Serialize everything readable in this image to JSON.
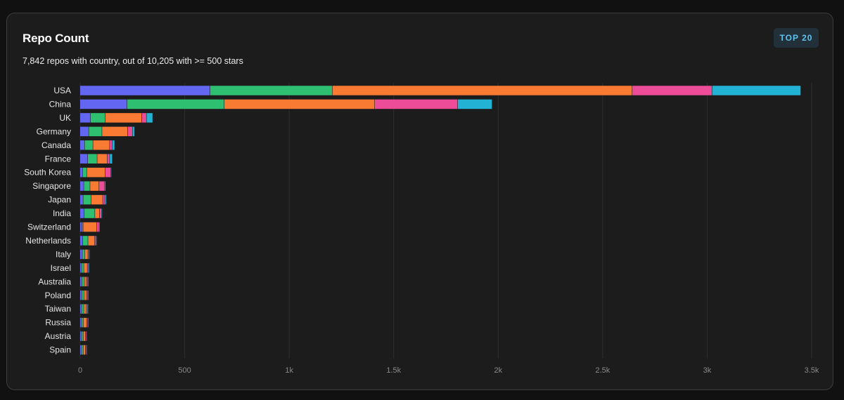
{
  "header": {
    "title": "Repo Count",
    "subtitle": "7,842 repos with country, out of 10,205 with >= 500 stars",
    "badge_label": "TOP 20"
  },
  "colors": {
    "background": "#111111",
    "card": "#1c1c1c",
    "badge_text": "#5fc2ee",
    "segments": [
      "#6366f1",
      "#2fbf71",
      "#f97a32",
      "#ec4c98",
      "#22b2d3"
    ]
  },
  "chart_data": {
    "type": "bar",
    "orientation": "horizontal",
    "stacked": true,
    "title": "",
    "xlabel": "",
    "ylabel": "",
    "xlim": [
      0,
      3500
    ],
    "x_ticks": [
      0,
      500,
      1000,
      1500,
      2000,
      2500,
      3000,
      3500
    ],
    "x_tick_labels": [
      "0",
      "500",
      "1k",
      "1.5k",
      "2k",
      "2.5k",
      "3k",
      "3.5k"
    ],
    "grid": true,
    "legend": "none",
    "categories": [
      "USA",
      "China",
      "UK",
      "Germany",
      "Canada",
      "France",
      "South Korea",
      "Singapore",
      "Japan",
      "India",
      "Switzerland",
      "Netherlands",
      "Italy",
      "Israel",
      "Australia",
      "Poland",
      "Taiwan",
      "Russia",
      "Austria",
      "Spain"
    ],
    "series": [
      {
        "values": [
          622,
          225,
          50,
          42,
          22,
          37,
          12,
          18,
          15,
          19,
          10,
          13,
          11,
          8,
          9,
          9,
          8,
          8,
          8,
          8
        ]
      },
      {
        "values": [
          585,
          465,
          70,
          63,
          40,
          45,
          20,
          30,
          38,
          52,
          5,
          25,
          12,
          10,
          12,
          10,
          10,
          8,
          8,
          8
        ]
      },
      {
        "values": [
          1435,
          720,
          175,
          123,
          80,
          48,
          89,
          43,
          56,
          22,
          65,
          32,
          15,
          17,
          10,
          12,
          12,
          16,
          10,
          10
        ]
      },
      {
        "values": [
          382,
          397,
          23,
          23,
          12,
          12,
          26,
          27,
          10,
          10,
          12,
          7,
          5,
          6,
          6,
          6,
          6,
          5,
          5,
          4
        ]
      },
      {
        "values": [
          425,
          165,
          30,
          10,
          12,
          13,
          4,
          5,
          7,
          4,
          4,
          4,
          4,
          4,
          4,
          4,
          4,
          4,
          3,
          4
        ]
      }
    ]
  }
}
